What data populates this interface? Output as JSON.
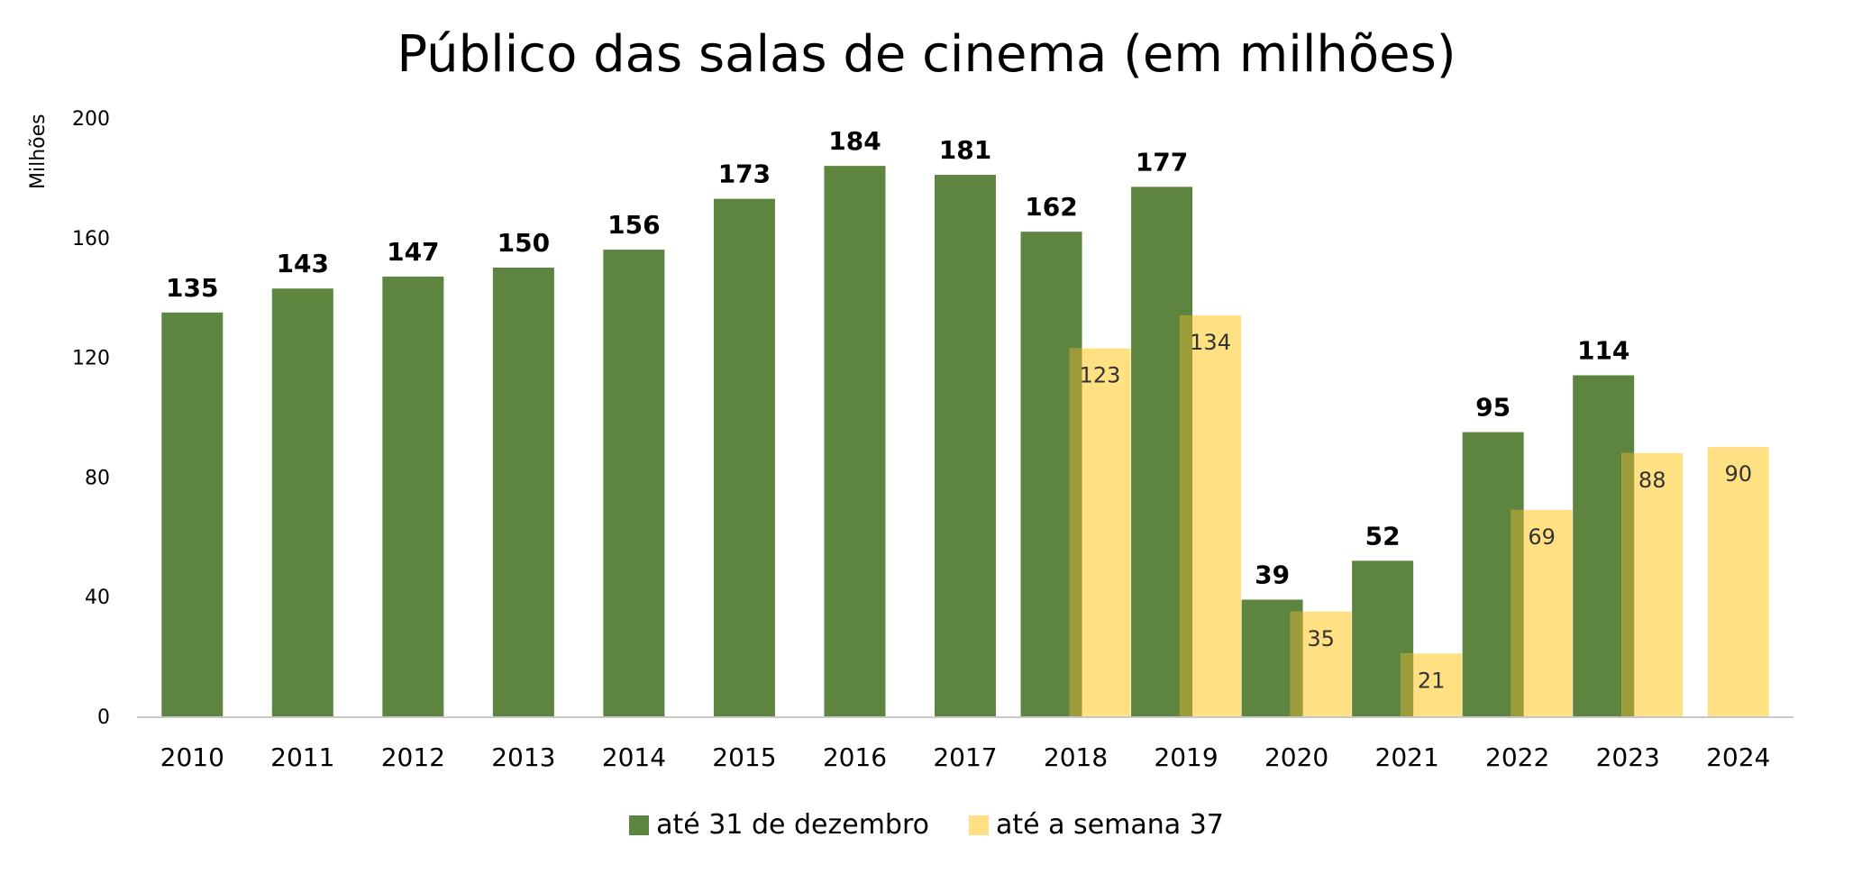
{
  "chart_data": {
    "type": "bar",
    "title": "Público das salas de cinema (em milhões)",
    "ylabel": "Milhões",
    "xlabel": "",
    "ylim": [
      0,
      200
    ],
    "yticks": [
      0,
      40,
      80,
      120,
      160,
      200
    ],
    "categories": [
      "2010",
      "2011",
      "2012",
      "2013",
      "2014",
      "2015",
      "2016",
      "2017",
      "2018",
      "2019",
      "2020",
      "2021",
      "2022",
      "2023",
      "2024"
    ],
    "series": [
      {
        "name": "até 31 de dezembro",
        "color": "#5E8540",
        "values": [
          135,
          143,
          147,
          150,
          156,
          173,
          184,
          181,
          162,
          177,
          39,
          52,
          95,
          114,
          null
        ]
      },
      {
        "name": "até a semana 37",
        "color": "#FFE083",
        "overlap_color": "#9E9C3A",
        "values": [
          null,
          null,
          null,
          null,
          null,
          null,
          null,
          null,
          123,
          134,
          35,
          21,
          69,
          88,
          90
        ]
      }
    ],
    "legend_position": "bottom",
    "grid": false
  }
}
